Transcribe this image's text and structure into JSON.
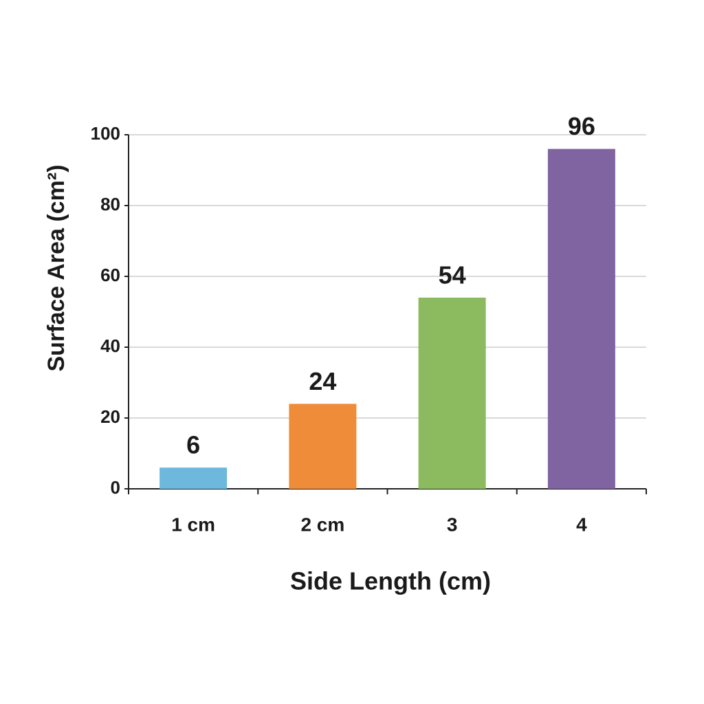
{
  "chart_data": {
    "type": "bar",
    "categories": [
      "1 cm",
      "2 cm",
      "3",
      "4"
    ],
    "values": [
      6,
      24,
      54,
      96
    ],
    "colors": [
      "#6db8dc",
      "#ee8c3a",
      "#8bba5f",
      "#8064a2"
    ],
    "x_label": "Side Length (cm)",
    "y_label": "Surface Area (cm²)",
    "ylim": [
      0,
      100
    ],
    "yticks": [
      0,
      20,
      40,
      60,
      80,
      100
    ],
    "grid": true
  }
}
